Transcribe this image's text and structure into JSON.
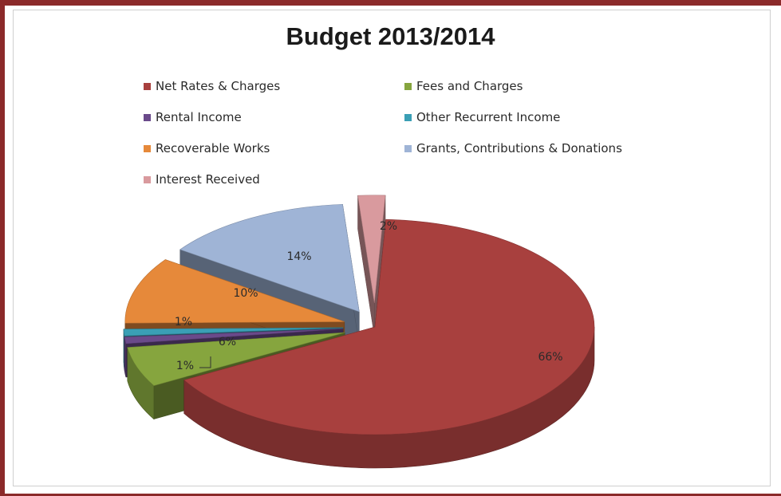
{
  "chart_data": {
    "type": "pie",
    "title": "Budget 2013/2014",
    "series": [
      {
        "name": "Net Rates & Charges",
        "value": 66,
        "label": "66%",
        "color": "#a8403e"
      },
      {
        "name": "Fees and Charges",
        "value": 6,
        "label": "6%",
        "color": "#86a53e"
      },
      {
        "name": "Rental Income",
        "value": 1,
        "label": "1%",
        "color": "#6a4a8a"
      },
      {
        "name": "Other Recurrent Income",
        "value": 1,
        "label": "1%",
        "color": "#3a9fb5"
      },
      {
        "name": "Recoverable Works",
        "value": 10,
        "label": "10%",
        "color": "#e6893a"
      },
      {
        "name": "Grants, Contributions & Donations",
        "value": 14,
        "label": "14%",
        "color": "#9fb4d6"
      },
      {
        "name": "Interest Received",
        "value": 2,
        "label": "2%",
        "color": "#d99a9e"
      }
    ],
    "legend_position": "top"
  }
}
